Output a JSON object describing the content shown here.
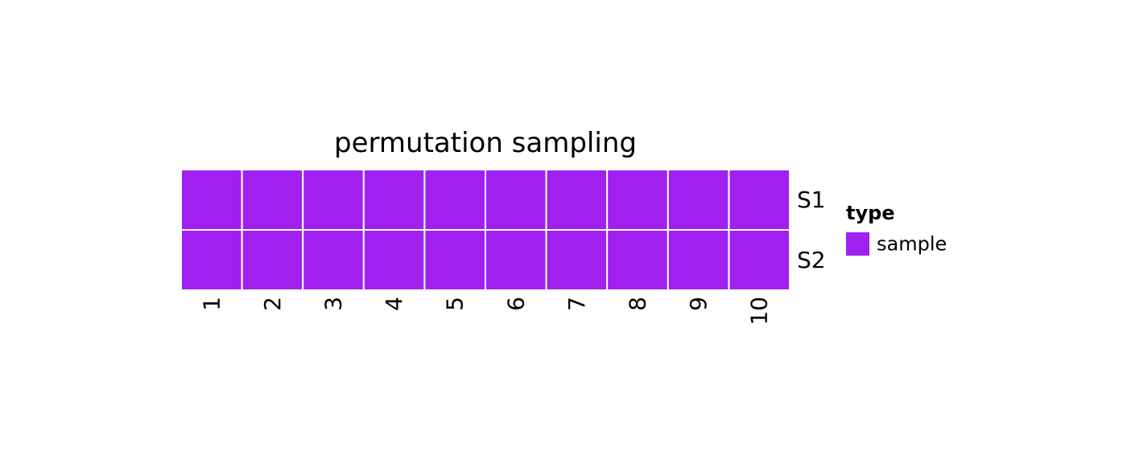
{
  "chart_data": {
    "type": "heatmap",
    "title": "permutation sampling",
    "xlabel": "",
    "ylabel": "",
    "x": [
      "1",
      "2",
      "3",
      "4",
      "5",
      "6",
      "7",
      "8",
      "9",
      "10"
    ],
    "y": [
      "S1",
      "S2"
    ],
    "cells": [
      [
        "sample",
        "sample",
        "sample",
        "sample",
        "sample",
        "sample",
        "sample",
        "sample",
        "sample",
        "sample"
      ],
      [
        "sample",
        "sample",
        "sample",
        "sample",
        "sample",
        "sample",
        "sample",
        "sample",
        "sample",
        "sample"
      ]
    ],
    "legend": {
      "title": "type",
      "placement": "right",
      "entries": [
        {
          "label": "sample",
          "color": "#A020F0"
        }
      ]
    },
    "cell_border_color": "#ffffff",
    "grid": false
  }
}
